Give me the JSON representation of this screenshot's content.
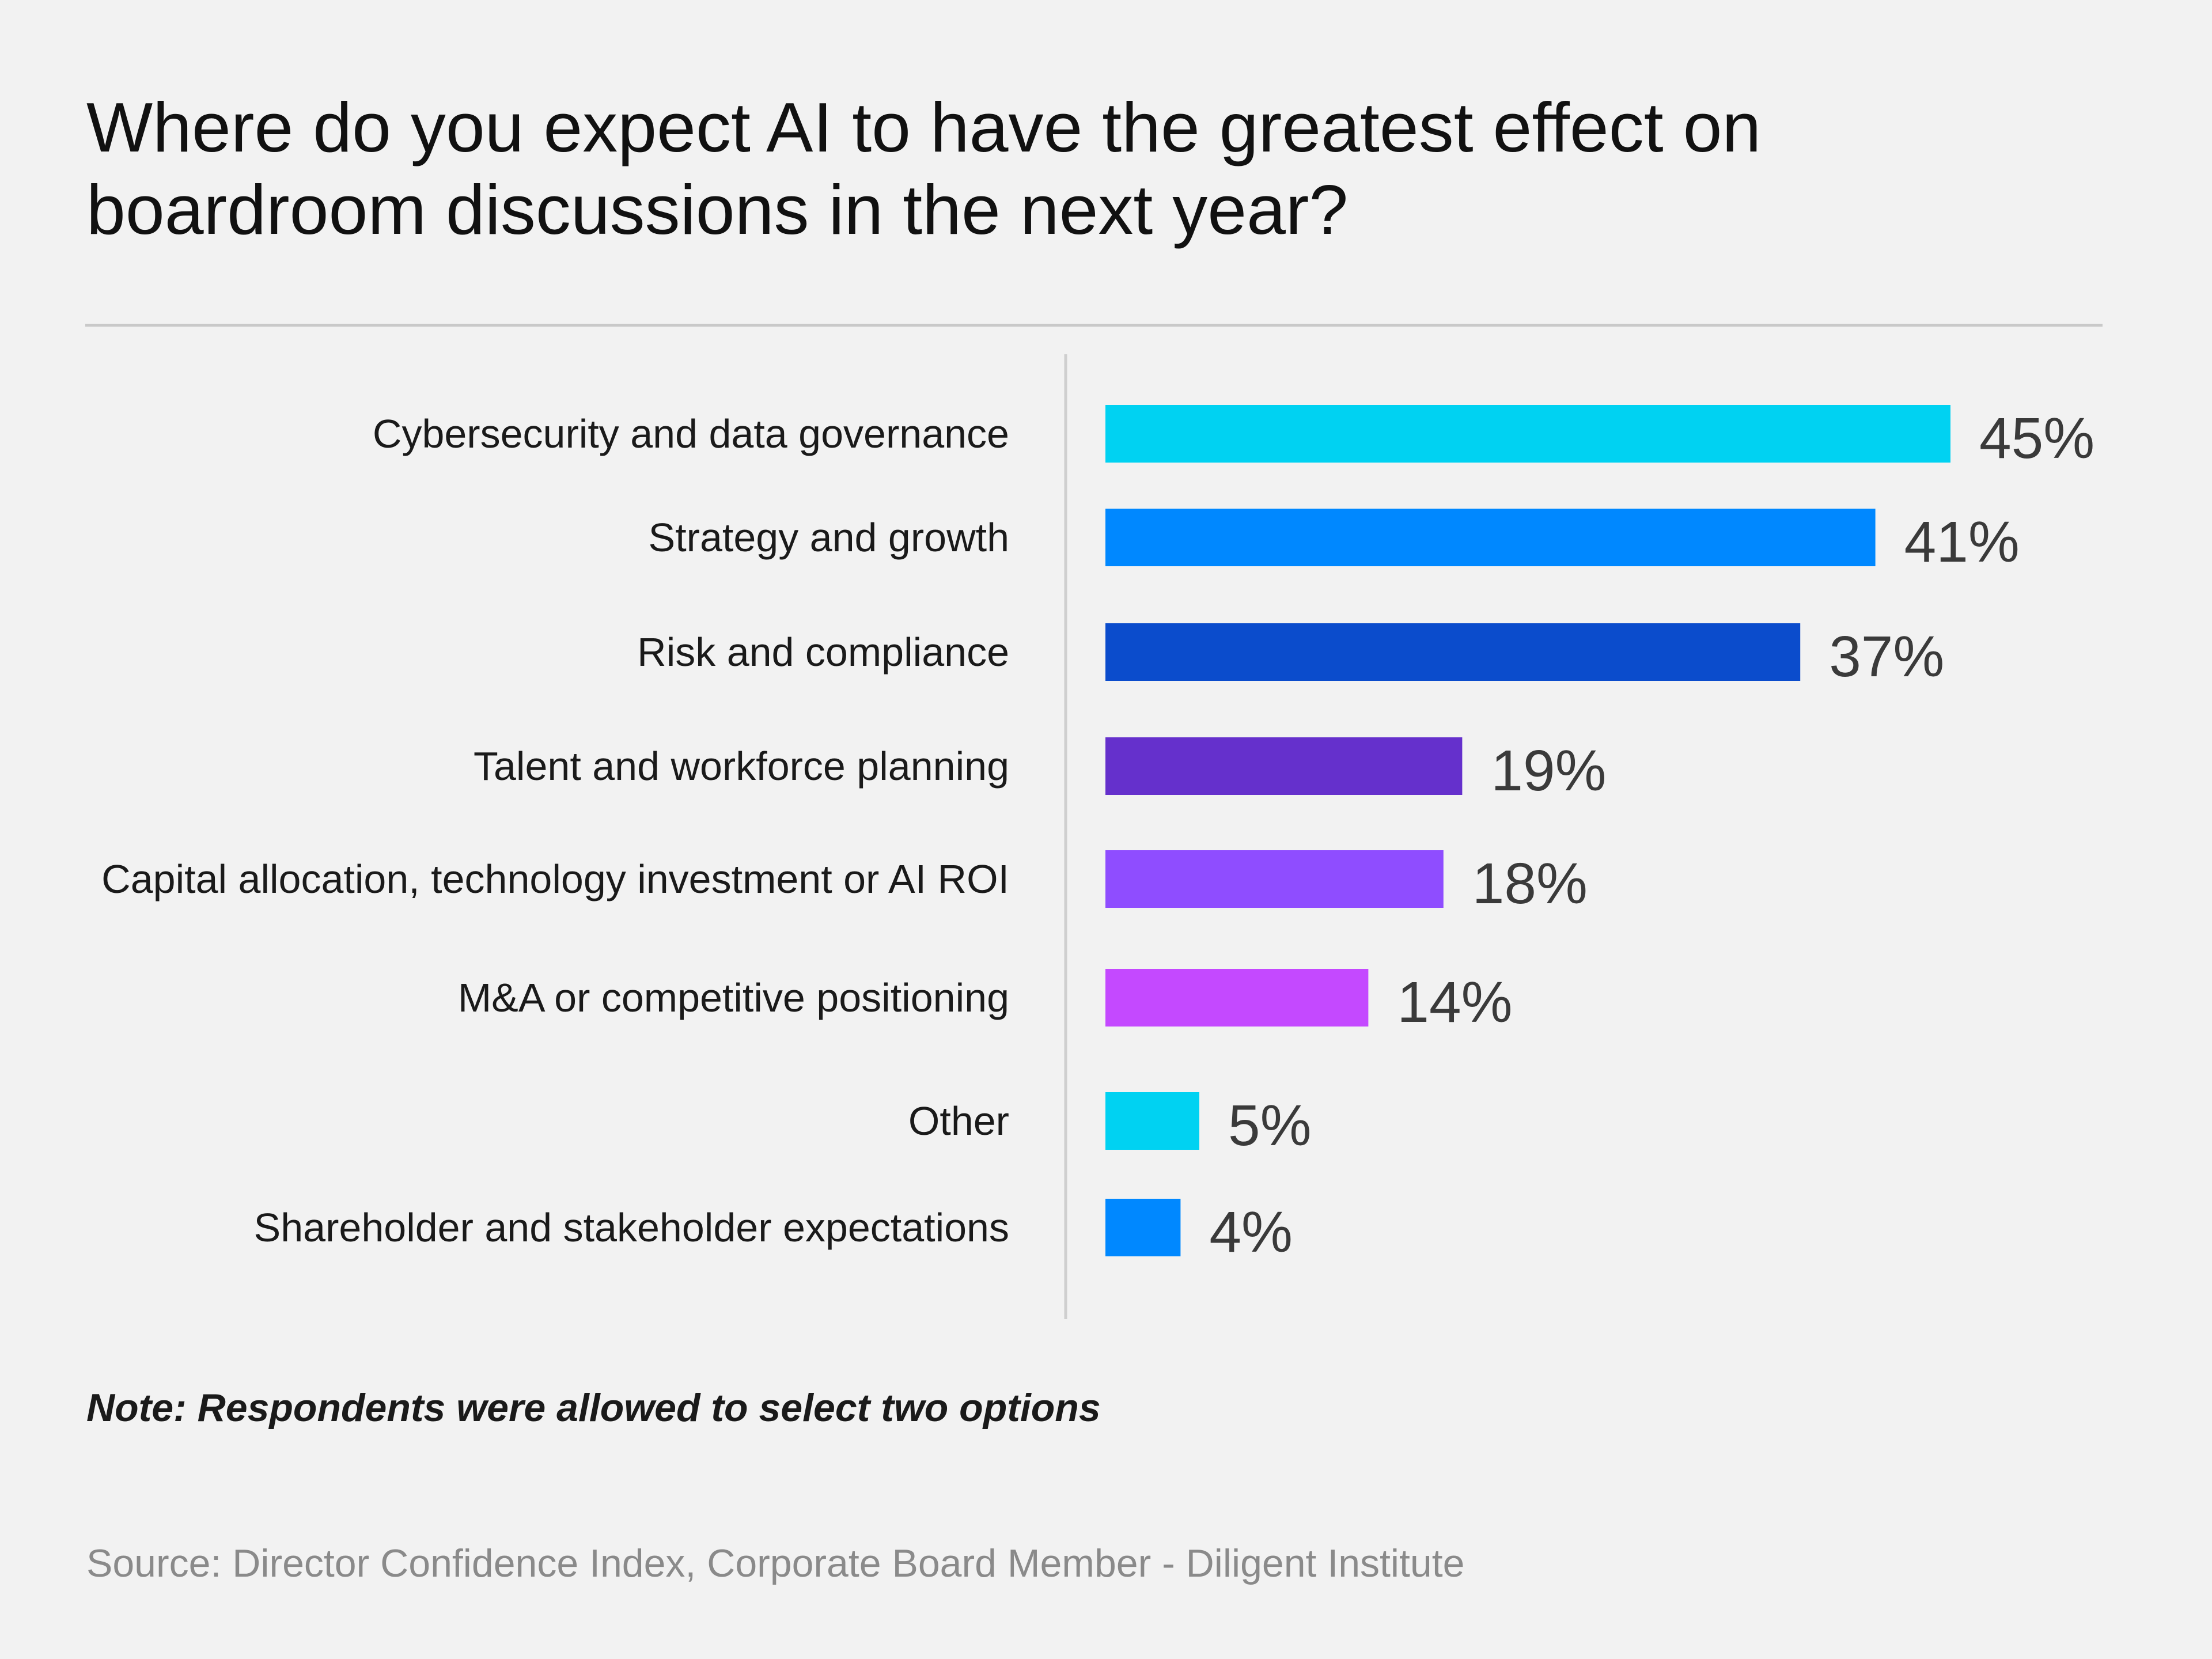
{
  "title_lines": [
    "Where do you expect AI to have the greatest effect on",
    "boardroom discussions in the next year?"
  ],
  "note": "Note: Respondents were allowed to select two options",
  "source": "Source: Director Confidence Index, Corporate Board Member - Diligent Institute",
  "chart_data": {
    "type": "bar",
    "orientation": "horizontal",
    "categories": [
      "Cybersecurity and data governance",
      "Strategy and growth",
      "Risk and compliance",
      "Talent and workforce planning",
      "Capital allocation, technology investment or AI ROI",
      "M&A or competitive positioning",
      "Other",
      "Shareholder and stakeholder expectations"
    ],
    "values": [
      45,
      41,
      37,
      19,
      18,
      14,
      5,
      4
    ],
    "value_labels": [
      "45%",
      "41%",
      "37%",
      "19%",
      "18%",
      "14%",
      "5%",
      "4%"
    ],
    "bar_colors": [
      "#00d2f2",
      "#0088ff",
      "#0b4ccc",
      "#6530cc",
      "#8f4dff",
      "#c449ff",
      "#00d2f2",
      "#0088ff"
    ],
    "xlim": [
      0,
      45
    ],
    "grid": false,
    "legend": "none"
  }
}
